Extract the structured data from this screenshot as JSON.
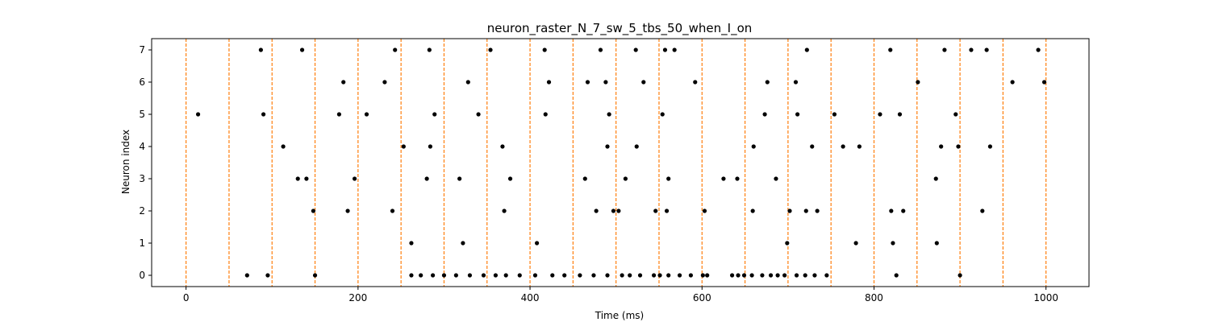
{
  "chart_data": {
    "type": "scatter",
    "title": "neuron_raster_N_7_sw_5_tbs_50_when_I_on",
    "xlabel": "Time (ms)",
    "ylabel": "Neuron index",
    "xlim": [
      -40,
      1050
    ],
    "ylim": [
      -0.35,
      7.35
    ],
    "xticks": [
      0,
      200,
      400,
      600,
      800,
      1000
    ],
    "yticks": [
      0,
      1,
      2,
      3,
      4,
      5,
      6,
      7
    ],
    "grid": false,
    "legend": "none",
    "point_color": "#000000",
    "vline_color": "#ff7f0e",
    "vlines": {
      "style": "dashed",
      "x": [
        0,
        50,
        100,
        150,
        200,
        250,
        300,
        350,
        400,
        450,
        500,
        550,
        600,
        650,
        700,
        750,
        800,
        850,
        900,
        950,
        1000
      ]
    },
    "series": [
      {
        "neuron": 0,
        "spikes": [
          71,
          95,
          150,
          262,
          273,
          287,
          300,
          314,
          330,
          346,
          360,
          372,
          388,
          406,
          426,
          440,
          458,
          474,
          490,
          507,
          516,
          528,
          544,
          551,
          561,
          574,
          587,
          601,
          606,
          635,
          642,
          649,
          658,
          670,
          680,
          688,
          696,
          710,
          720,
          731,
          745,
          826,
          900
        ]
      },
      {
        "neuron": 1,
        "spikes": [
          262,
          322,
          408,
          699,
          779,
          822,
          873
        ]
      },
      {
        "neuron": 2,
        "spikes": [
          148,
          188,
          240,
          370,
          477,
          497,
          503,
          546,
          559,
          603,
          659,
          702,
          721,
          734,
          820,
          834,
          926
        ]
      },
      {
        "neuron": 3,
        "spikes": [
          130,
          140,
          196,
          280,
          318,
          377,
          464,
          511,
          561,
          625,
          641,
          686,
          872
        ]
      },
      {
        "neuron": 4,
        "spikes": [
          113,
          253,
          284,
          368,
          490,
          524,
          660,
          728,
          764,
          783,
          878,
          898,
          935
        ]
      },
      {
        "neuron": 5,
        "spikes": [
          14,
          90,
          178,
          210,
          289,
          340,
          418,
          492,
          554,
          673,
          711,
          754,
          807,
          830,
          895
        ]
      },
      {
        "neuron": 6,
        "spikes": [
          183,
          231,
          328,
          422,
          467,
          488,
          532,
          592,
          676,
          709,
          851,
          961,
          998
        ]
      },
      {
        "neuron": 7,
        "spikes": [
          87,
          135,
          243,
          283,
          354,
          417,
          482,
          523,
          557,
          568,
          722,
          819,
          882,
          913,
          931,
          991
        ]
      }
    ]
  }
}
